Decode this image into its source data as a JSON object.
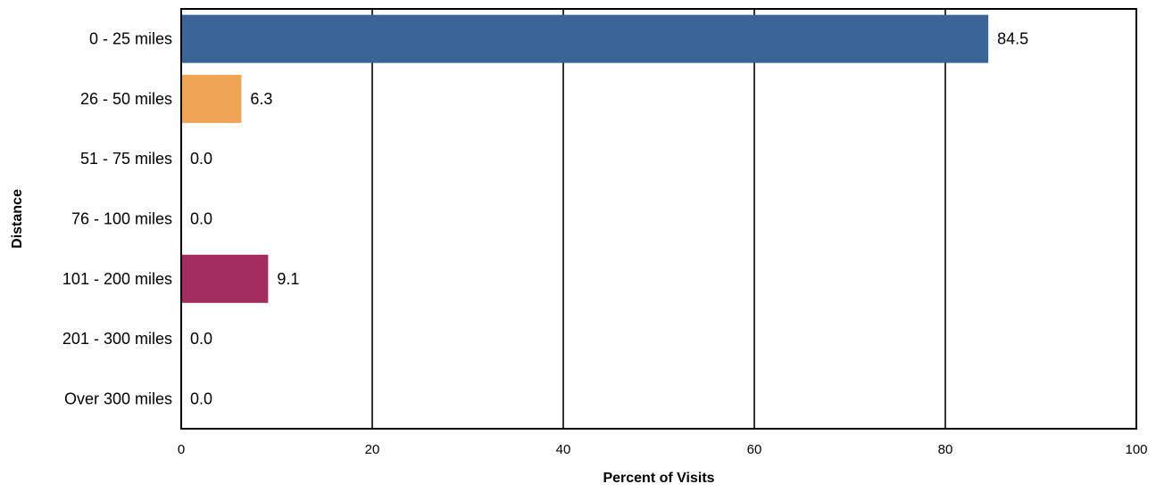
{
  "chart_data": {
    "type": "bar",
    "orientation": "horizontal",
    "title": "",
    "xlabel": "Percent of Visits",
    "ylabel": "Distance",
    "xlim": [
      0,
      100
    ],
    "xticks": [
      "0",
      "20",
      "40",
      "60",
      "80",
      "100"
    ],
    "grid": true,
    "categories": [
      "0 - 25 miles",
      "26 - 50 miles",
      "51 - 75 miles",
      "76 - 100 miles",
      "101 - 200 miles",
      "201 - 300 miles",
      "Over 300 miles"
    ],
    "values": [
      84.5,
      6.3,
      0.0,
      0.0,
      9.1,
      0.0,
      0.0
    ],
    "value_labels": [
      "84.5",
      "6.3",
      "0.0",
      "0.0",
      "9.1",
      "0.0",
      "0.0"
    ],
    "colors": [
      "#3b6598",
      "#f0a456",
      "#3b6598",
      "#3b6598",
      "#a32c5f",
      "#3b6598",
      "#3b6598"
    ]
  }
}
